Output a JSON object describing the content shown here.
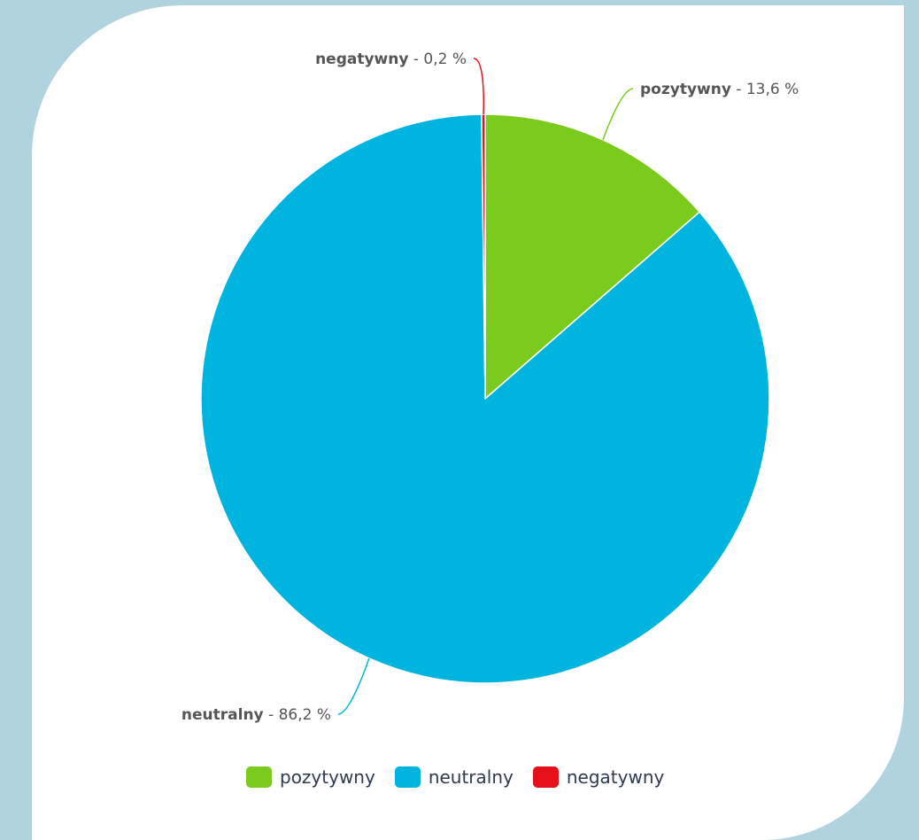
{
  "chart_data": {
    "type": "pie",
    "slices": [
      {
        "label": "pozytywny",
        "value": 13.6,
        "value_text": "13,6 %",
        "color": "#7acb1d"
      },
      {
        "label": "neutralny",
        "value": 86.2,
        "value_text": "86,2 %",
        "color": "#00b4e0"
      },
      {
        "label": "negatywny",
        "value": 0.2,
        "value_text": "0,2 %",
        "color": "#e5101a"
      }
    ],
    "start_angle_deg": 0,
    "direction": "clockwise",
    "legend_position": "bottom-center",
    "data_label_separator": " - "
  }
}
